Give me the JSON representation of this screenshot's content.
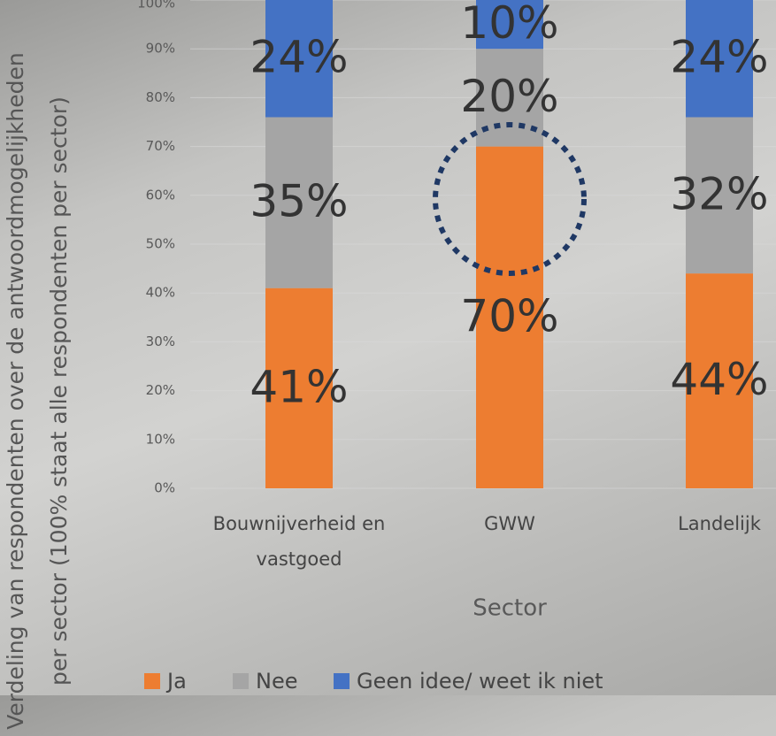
{
  "chart_data": {
    "type": "stacked_bar",
    "ylabel": "Verdeling van respondenten over de antwoordmogelijkheden per sector (100% staat alle respondenten per sector)",
    "xlabel": "Sector",
    "categories": [
      "Bouwnijverheid en vastgoed",
      "GWW",
      "Landelijk"
    ],
    "series": [
      {
        "name": "Ja",
        "color": "#ed7d31",
        "values": [
          41,
          70,
          44
        ],
        "value_labels": [
          "41%",
          "70%",
          "44%"
        ]
      },
      {
        "name": "Nee",
        "color": "#a5a5a5",
        "values": [
          35,
          20,
          32
        ],
        "value_labels": [
          "35%",
          "20%",
          "32%"
        ]
      },
      {
        "name": "Geen idee/ weet ik niet",
        "color": "#4472c4",
        "values": [
          24,
          10,
          24
        ],
        "value_labels": [
          "24%",
          "10%",
          "24%"
        ]
      }
    ],
    "ylim": [
      0,
      100
    ],
    "yticks": [
      {
        "value": 0,
        "label": "0%"
      },
      {
        "value": 10,
        "label": "10%"
      },
      {
        "value": 20,
        "label": "20%"
      },
      {
        "value": 30,
        "label": "30%"
      },
      {
        "value": 40,
        "label": "40%"
      },
      {
        "value": 50,
        "label": "50%"
      },
      {
        "value": 60,
        "label": "60%"
      },
      {
        "value": 70,
        "label": "70%"
      },
      {
        "value": 80,
        "label": "80%"
      },
      {
        "value": 90,
        "label": "90%"
      },
      {
        "value": 100,
        "label": "100%"
      }
    ],
    "grid": true,
    "legend": "bottom"
  }
}
